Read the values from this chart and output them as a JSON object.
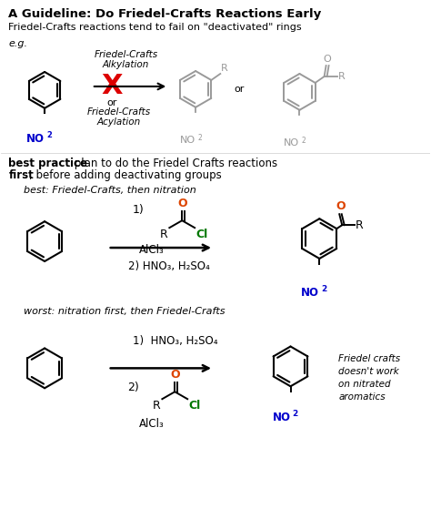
{
  "title": "A Guideline: Do Friedel-Crafts Reactions Early",
  "subtitle": "Friedel-Crafts reactions tend to fail on \"deactivated\" rings",
  "eg_label": "e.g.",
  "fc_alkylation": "Friedel-Crafts\nAlkylation",
  "fc_acylation": "Friedel-Crafts\nAcylation",
  "best_label": "best: Friedel-Crafts, then nitration",
  "worst_label": "worst: nitration first, then Friedel-Crafts",
  "step2_best": "2) HNO₃, H₂SO₄",
  "step1_worst": "1)  HNO₃, H₂SO₄",
  "alcl3": "AlCl₃",
  "fc_note": "Friedel crafts\ndoesn't work\non nitrated\naromatics",
  "bg_color": "#ffffff",
  "text_color": "#000000",
  "blue_color": "#0000cc",
  "red_color": "#dd0000",
  "green_color": "#007700",
  "orange_color": "#dd4400",
  "gray_color": "#999999"
}
